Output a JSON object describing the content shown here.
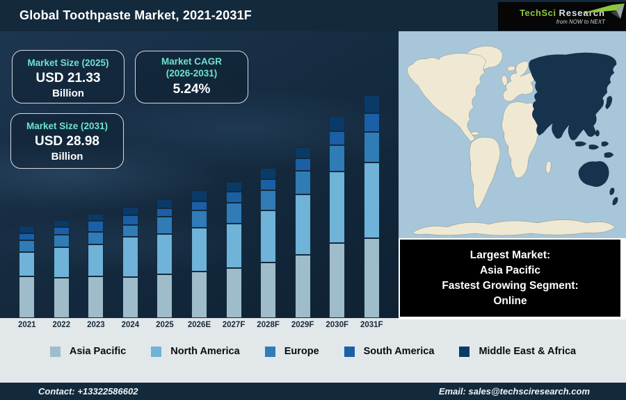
{
  "header": {
    "title": "Global Toothpaste Market, 2021-2031F",
    "logo": {
      "brand_primary": "TechSci",
      "brand_secondary": "Research",
      "tagline": "from NOW to NEXT"
    }
  },
  "cards": {
    "market_size_2025": {
      "label": "Market Size (2025)",
      "value": "USD 21.33",
      "unit": "Billion"
    },
    "market_cagr": {
      "label_line1": "Market CAGR",
      "label_line2": "(2026-2031)",
      "value": "5.24%"
    },
    "market_size_2031": {
      "label": "Market Size (2031)",
      "value": "USD 28.98",
      "unit": "Billion"
    }
  },
  "info_box": {
    "lines": [
      "Largest Market:",
      "Asia Pacific",
      "Fastest Growing Segment:",
      "Online"
    ]
  },
  "footer": {
    "contact": "Contact: +13322586602",
    "email": "Email: sales@techsciresearch.com"
  },
  "colors": {
    "header_bg": "#13293c",
    "chart_bg": "#152b40",
    "accent_teal": "#6ce4d0",
    "light_strip": "#e2e7ea",
    "map_ocean": "#a7c6da",
    "map_land": "#efe9d3",
    "map_highlight": "#16334e",
    "footer_bg": "#122a3c"
  },
  "chart_data": {
    "type": "bar",
    "stacked": true,
    "title": "Global Toothpaste Market, 2021-2031F",
    "xlabel": "",
    "ylabel": "",
    "axis_values_shown": false,
    "unit": "relative stacked segment height (px, no value axis shown)",
    "legend_position": "bottom",
    "categories": [
      "2021",
      "2022",
      "2023",
      "2024",
      "2025",
      "2026E",
      "2027F",
      "2028F",
      "2029F",
      "2030F",
      "2031F"
    ],
    "series": [
      {
        "key": "asia-pacific",
        "name": "Asia Pacific",
        "color": "#9fbcca",
        "values": [
          60,
          58,
          60,
          59,
          63,
          67,
          72,
          80,
          91,
          108,
          115
        ]
      },
      {
        "key": "north-america",
        "name": "North America",
        "color": "#6fb3d8",
        "values": [
          35,
          44,
          46,
          58,
          58,
          63,
          64,
          75,
          87,
          103,
          109
        ]
      },
      {
        "key": "europe",
        "name": "Europe",
        "color": "#2f7cb7",
        "values": [
          17,
          18,
          18,
          17,
          25,
          25,
          30,
          29,
          34,
          38,
          44
        ]
      },
      {
        "key": "south-america",
        "name": "South America",
        "color": "#1b5fa7",
        "values": [
          10,
          11,
          16,
          14,
          12,
          13,
          16,
          16,
          18,
          20,
          27
        ]
      },
      {
        "key": "middle-east-africa",
        "name": "Middle East & Africa",
        "color": "#0a3a68",
        "values": [
          11,
          10,
          10,
          12,
          13,
          16,
          14,
          16,
          16,
          21,
          26
        ]
      }
    ],
    "annotations": {
      "market_size_2025_usd_billion": 21.33,
      "market_size_2031_usd_billion": 28.98,
      "cagr_2026_2031_percent": 5.24,
      "largest_market": "Asia Pacific",
      "fastest_growing_segment": "Online"
    }
  }
}
